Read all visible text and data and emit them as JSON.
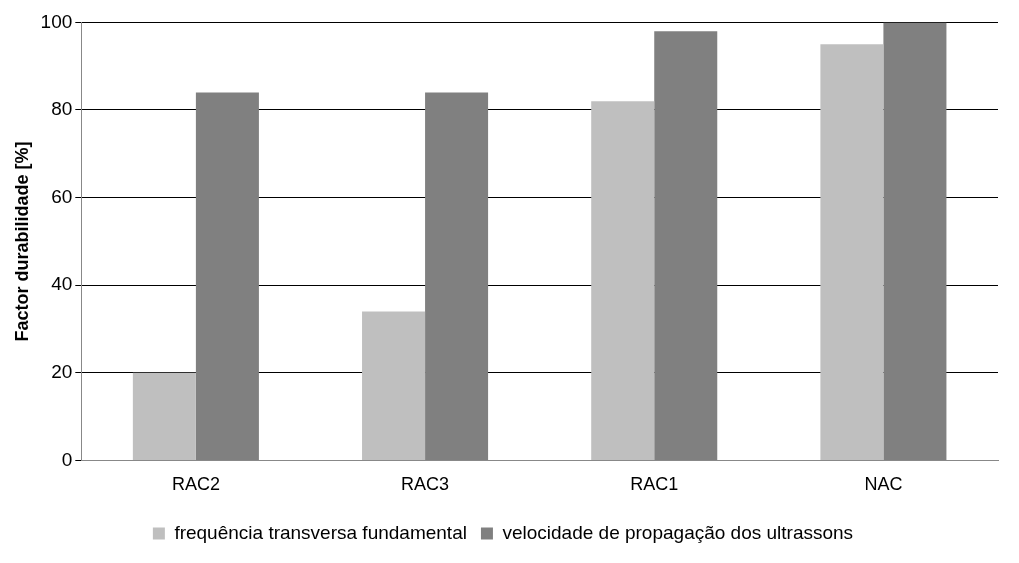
{
  "chart_data": {
    "type": "bar",
    "ylabel": "Factor durabilidade [%]",
    "categories": [
      "RAC2",
      "RAC3",
      "RAC1",
      "NAC"
    ],
    "series": [
      {
        "name": "frequência transversa fundamental",
        "color": "#bfbfbf",
        "values": [
          20,
          34,
          82,
          95
        ]
      },
      {
        "name": "velocidade de propagação dos ultrassons",
        "color": "#808080",
        "values": [
          84,
          84,
          98,
          100
        ]
      }
    ],
    "ylim": [
      0,
      100
    ],
    "yticks": [
      0,
      20,
      40,
      60,
      80,
      100
    ],
    "grid": "y",
    "legend": "bottom"
  }
}
